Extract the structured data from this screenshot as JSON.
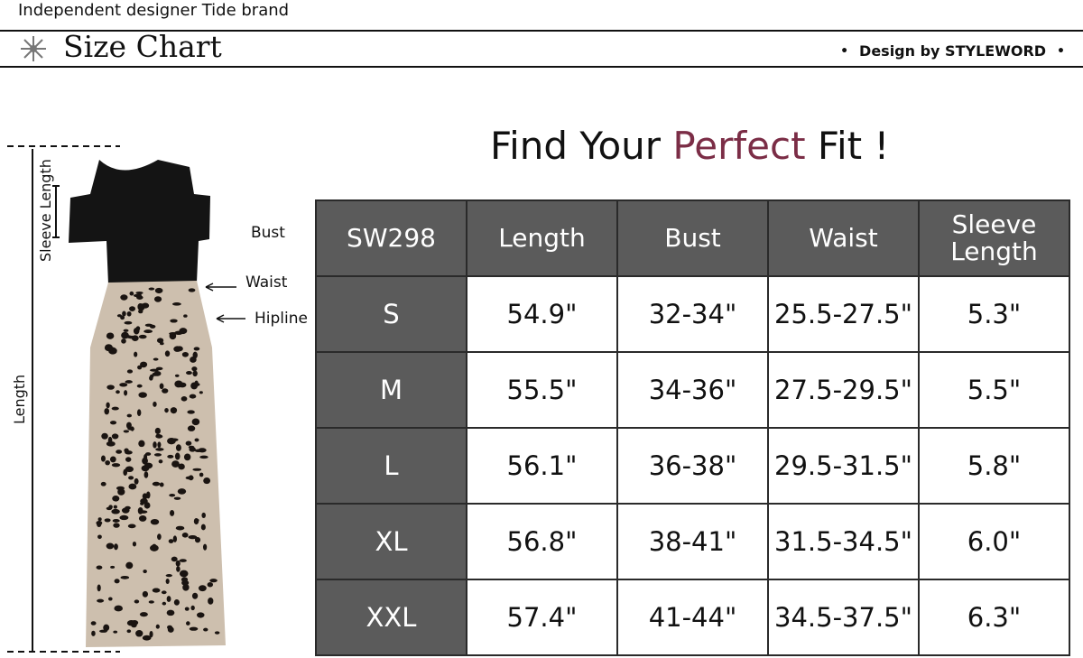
{
  "header": {
    "tagline": "Independent designer Tide brand",
    "title": "Size Chart",
    "title_icon": "sun-icon",
    "design_credit": "Design by STYLEWORD",
    "bullet": "•"
  },
  "headline": {
    "part1": "Find Your ",
    "accent": "Perfect",
    "part2": " Fit",
    "exclaim": "!",
    "accent_color": "#7b2d46"
  },
  "diagram": {
    "labels": {
      "sleeve_length": "Sleeve Length",
      "bust": "Bust",
      "waist": "Waist",
      "hipline": "Hipline",
      "length": "Length"
    }
  },
  "table": {
    "columns": [
      "SW298",
      "Length",
      "Bust",
      "Waist",
      "Sleeve Length"
    ],
    "rows": [
      [
        "S",
        "54.9\"",
        "32-34\"",
        "25.5-27.5\"",
        "5.3\""
      ],
      [
        "M",
        "55.5\"",
        "34-36\"",
        "27.5-29.5\"",
        "5.5\""
      ],
      [
        "L",
        "56.1\"",
        "36-38\"",
        "29.5-31.5\"",
        "5.8\""
      ],
      [
        "XL",
        "56.8\"",
        "38-41\"",
        "31.5-34.5\"",
        "6.0\""
      ],
      [
        "XXL",
        "57.4\"",
        "41-44\"",
        "34.5-37.5\"",
        "6.3\""
      ]
    ],
    "header_color": "#5b5b5b"
  }
}
